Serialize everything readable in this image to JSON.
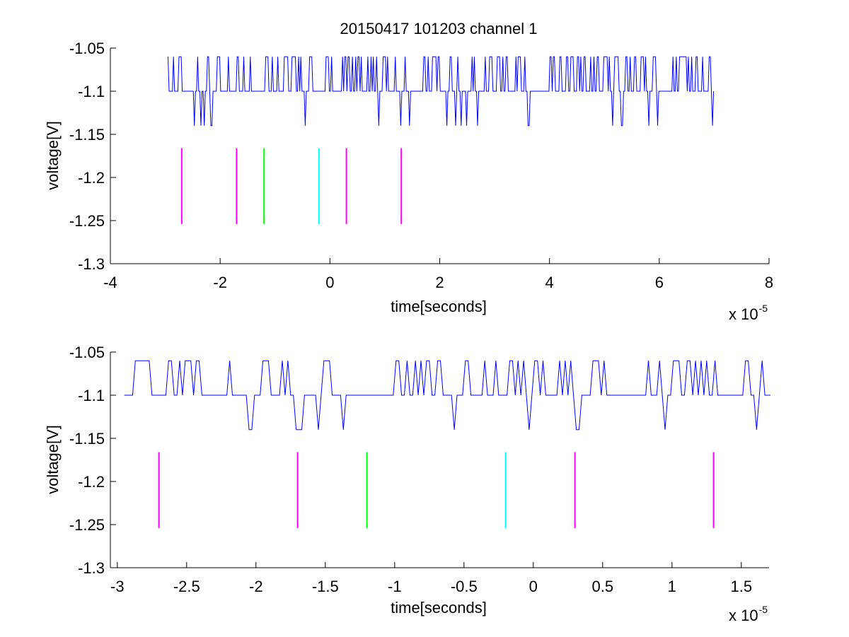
{
  "figure": {
    "title": "20150417 101203 channel 1",
    "background": "#ffffff"
  },
  "colors": {
    "trace": "#0000ff",
    "magenta": "#ff00ff",
    "green": "#00ff00",
    "cyan": "#00ffff",
    "axis": "#000000"
  },
  "chart_data": [
    {
      "type": "line",
      "title": "20150417 101203 channel 1",
      "xlabel": "time[seconds]",
      "ylabel": "voltage[V]",
      "x_multiplier": "x 10",
      "x_exponent": "-5",
      "xlim": [
        -4,
        8
      ],
      "ylim": [
        -1.3,
        -1.05
      ],
      "xticks": [
        -4,
        -2,
        0,
        2,
        4,
        6,
        8
      ],
      "xticklabels": [
        "-4",
        "-2",
        "0",
        "2",
        "4",
        "6",
        "8"
      ],
      "yticks": [
        -1.05,
        -1.1,
        -1.15,
        -1.2,
        -1.25,
        -1.3
      ],
      "yticklabels": [
        "-1.05",
        "-1.1",
        "-1.15",
        "-1.2",
        "-1.25",
        "-1.3"
      ],
      "grid": false,
      "series": [
        {
          "color": "#0000ff",
          "x_range": [
            -2.95,
            7.0
          ],
          "levels": [
            -1.06,
            -1.1,
            -1.14
          ],
          "baseline": -1.1,
          "note": "dense digitised noise trace toggling between three quantized levels",
          "samples": []
        }
      ],
      "markers": [
        {
          "x": -2.7,
          "y_range": [
            -1.254,
            -1.166
          ],
          "color": "#ff00ff"
        },
        {
          "x": -1.7,
          "y_range": [
            -1.254,
            -1.166
          ],
          "color": "#ff00ff"
        },
        {
          "x": -1.2,
          "y_range": [
            -1.254,
            -1.166
          ],
          "color": "#00ff00"
        },
        {
          "x": -0.2,
          "y_range": [
            -1.254,
            -1.166
          ],
          "color": "#00ffff"
        },
        {
          "x": 0.3,
          "y_range": [
            -1.254,
            -1.166
          ],
          "color": "#ff00ff"
        },
        {
          "x": 1.3,
          "y_range": [
            -1.254,
            -1.166
          ],
          "color": "#ff00ff"
        }
      ]
    },
    {
      "type": "line",
      "title": "",
      "xlabel": "time[seconds]",
      "ylabel": "voltage[V]",
      "x_multiplier": "x 10",
      "x_exponent": "-5",
      "xlim": [
        -3.05,
        1.7
      ],
      "ylim": [
        -1.3,
        -1.05
      ],
      "xticks": [
        -3,
        -2.5,
        -2,
        -1.5,
        -1,
        -0.5,
        0,
        0.5,
        1,
        1.5
      ],
      "xticklabels": [
        "-3",
        "-2.5",
        "-2",
        "-1.5",
        "-1",
        "-0.5",
        "0",
        "0.5",
        "1",
        "1.5"
      ],
      "yticks": [
        -1.05,
        -1.1,
        -1.15,
        -1.2,
        -1.25,
        -1.3
      ],
      "yticklabels": [
        "-1.05",
        "-1.1",
        "-1.15",
        "-1.2",
        "-1.25",
        "-1.3"
      ],
      "grid": false,
      "series": [
        {
          "color": "#0000ff",
          "x_range": [
            -2.95,
            1.7
          ],
          "levels": [
            -1.06,
            -1.1,
            -1.14
          ],
          "baseline": -1.1,
          "note": "zoomed view of the same digitised trace",
          "samples": []
        }
      ],
      "markers": [
        {
          "x": -2.7,
          "y_range": [
            -1.254,
            -1.166
          ],
          "color": "#ff00ff"
        },
        {
          "x": -1.7,
          "y_range": [
            -1.254,
            -1.166
          ],
          "color": "#ff00ff"
        },
        {
          "x": -1.2,
          "y_range": [
            -1.254,
            -1.166
          ],
          "color": "#00ff00"
        },
        {
          "x": -0.2,
          "y_range": [
            -1.254,
            -1.166
          ],
          "color": "#00ffff"
        },
        {
          "x": 0.3,
          "y_range": [
            -1.254,
            -1.166
          ],
          "color": "#ff00ff"
        },
        {
          "x": 1.3,
          "y_range": [
            -1.254,
            -1.166
          ],
          "color": "#ff00ff"
        }
      ]
    }
  ]
}
